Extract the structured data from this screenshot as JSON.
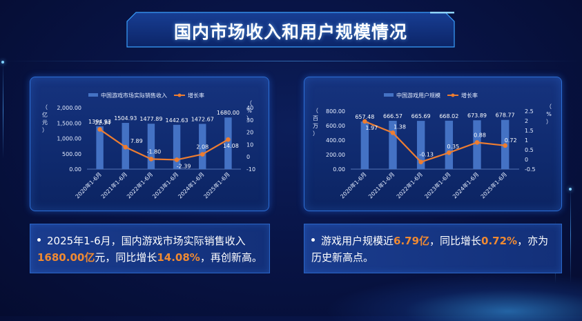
{
  "title": "国内市场收入和用户规模情况",
  "colors": {
    "bar": "#4472c4",
    "line": "#ed7d31",
    "accent": "#f08a32",
    "grid": "#3a5aa0"
  },
  "chart_data": [
    {
      "type": "bar",
      "categories": [
        "2020年1-6月",
        "2021年1-6月",
        "2022年1-6月",
        "2023年1-6月",
        "2024年1-6月",
        "2025年1-6月"
      ],
      "series": [
        {
          "name": "中国游戏市场实际销售收入",
          "type": "bar",
          "axis": "left",
          "values": [
            1394.93,
            1504.93,
            1477.89,
            1442.63,
            1472.67,
            1680.0
          ],
          "labels": [
            "1394.93",
            "1504.93",
            "1477.89",
            "1442.63",
            "1472.67",
            "1680.00"
          ]
        },
        {
          "name": "增长率",
          "type": "line",
          "axis": "right",
          "values": [
            22.34,
            7.89,
            -1.8,
            -2.39,
            2.08,
            14.08
          ],
          "labels": [
            "22.34",
            "7.89",
            "-1.80",
            "-2.39",
            "2.08",
            "14.08"
          ]
        }
      ],
      "y_left_label": "（亿元）",
      "y_left_ticks": [
        "2,000.00",
        "1,500.00",
        "1,000.00",
        "500.00",
        "0.00"
      ],
      "y_left_lim": [
        0,
        2000
      ],
      "y_right_label": "（%）",
      "y_right_ticks": [
        "40",
        "30",
        "20",
        "10",
        "0",
        "-10"
      ],
      "y_right_lim": [
        -10,
        40
      ],
      "legend": "top"
    },
    {
      "type": "bar",
      "categories": [
        "2020年1-6月",
        "2021年1-6月",
        "2022年1-6月",
        "2023年1-6月",
        "2024年1-6月",
        "2025年1-6月"
      ],
      "series": [
        {
          "name": "中国游戏用户规模",
          "type": "bar",
          "axis": "left",
          "values": [
            657.48,
            666.57,
            665.69,
            668.02,
            673.89,
            678.77
          ],
          "labels": [
            "657.48",
            "666.57",
            "665.69",
            "668.02",
            "673.89",
            "678.77"
          ]
        },
        {
          "name": "增长率",
          "type": "line",
          "axis": "right",
          "values": [
            1.97,
            1.38,
            -0.13,
            0.35,
            0.88,
            0.72
          ],
          "labels": [
            "1.97",
            "1.38",
            "-0.13",
            "0.35",
            "0.88",
            "0.72"
          ]
        }
      ],
      "y_left_label": "（百万）",
      "y_left_ticks": [
        "800.00",
        "600.00",
        "400.00",
        "200.00",
        "0.00"
      ],
      "y_left_lim": [
        0,
        800
      ],
      "y_right_label": "（%）",
      "y_right_ticks": [
        "2.5",
        "2",
        "1.5",
        "1",
        "0.5",
        "0",
        "-0.5"
      ],
      "y_right_lim": [
        -0.5,
        2.5
      ],
      "legend": "top"
    }
  ],
  "notes": [
    {
      "p1": "2025年1-6月，国内游戏市场实际销售收入",
      "h1": "1680.00亿",
      "p2": "元，同比增长",
      "h2": "14.08%",
      "p3": "，再创新高。"
    },
    {
      "p1": "游戏用户规模近",
      "h1": "6.79亿",
      "p2": "，同比增长",
      "h2": "0.72%",
      "p3": "，亦为历史新高点。"
    }
  ]
}
